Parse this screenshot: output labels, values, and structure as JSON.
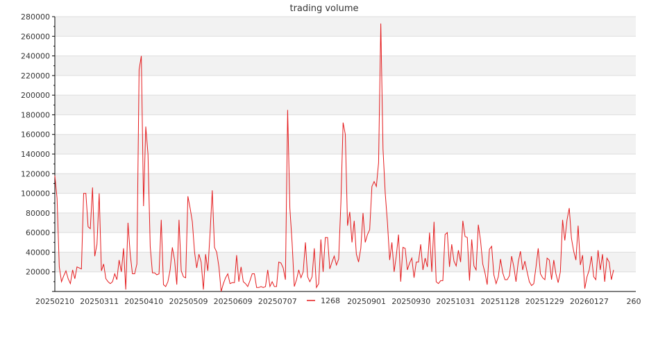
{
  "chart_data": {
    "type": "line",
    "title": "trading volume",
    "xlabel": "",
    "ylabel": "",
    "ylim": [
      0,
      280000
    ],
    "y_ticks": [
      20000,
      40000,
      60000,
      80000,
      100000,
      120000,
      140000,
      160000,
      180000,
      200000,
      220000,
      240000,
      260000,
      280000
    ],
    "x_tick_labels": [
      "20250210",
      "20250311",
      "20250410",
      "20250509",
      "20250609",
      "20250707",
      "20250806",
      "20250901",
      "20250930",
      "20251031",
      "20251128",
      "20251229",
      "20260127",
      "260"
    ],
    "grid": true,
    "legend_position": "bottom",
    "colors": {
      "series": "#e41a1c",
      "band": "#f2f2f2",
      "grid": "#dddddd",
      "axis": "#000000"
    },
    "series": [
      {
        "name": "1268",
        "values": [
          118000,
          95000,
          25000,
          10000,
          16000,
          21000,
          13000,
          8000,
          22000,
          13000,
          25000,
          24000,
          23000,
          100000,
          100000,
          66000,
          64000,
          106000,
          36000,
          48000,
          100000,
          21000,
          28000,
          13000,
          10000,
          8000,
          10000,
          18000,
          12000,
          32000,
          20000,
          44000,
          2000,
          70000,
          38000,
          18000,
          18000,
          28000,
          226000,
          240000,
          87000,
          168000,
          140000,
          46000,
          19000,
          19000,
          17000,
          18000,
          73000,
          7000,
          5000,
          10000,
          22000,
          45000,
          32000,
          7000,
          73000,
          21000,
          15000,
          14000,
          97000,
          85000,
          71000,
          40000,
          24000,
          38000,
          30000,
          2000,
          38000,
          21000,
          59000,
          103000,
          45000,
          40000,
          25000,
          0,
          8000,
          14000,
          18000,
          8000,
          9000,
          9000,
          37000,
          10000,
          25000,
          10000,
          8000,
          5000,
          11000,
          18000,
          18000,
          4000,
          4000,
          5000,
          4000,
          5000,
          22000,
          5000,
          10000,
          5000,
          5000,
          30000,
          29000,
          24000,
          12000,
          185000,
          85000,
          50000,
          5000,
          12000,
          22000,
          14000,
          20000,
          50000,
          15000,
          10000,
          15000,
          44000,
          4000,
          8000,
          53000,
          20000,
          55000,
          55000,
          23000,
          30000,
          36000,
          27000,
          33000,
          90000,
          172000,
          160000,
          67000,
          81000,
          50000,
          72000,
          38000,
          30000,
          44000,
          80000,
          50000,
          58000,
          63000,
          107000,
          112000,
          107000,
          131000,
          273000,
          145000,
          100000,
          70000,
          32000,
          50000,
          20000,
          36000,
          58000,
          10000,
          45000,
          44000,
          22000,
          29000,
          34000,
          14000,
          30000,
          30000,
          48000,
          22000,
          34000,
          25000,
          60000,
          20000,
          71000,
          10000,
          8000,
          11000,
          11000,
          58000,
          60000,
          25000,
          48000,
          31000,
          26000,
          42000,
          30000,
          72000,
          56000,
          55000,
          11000,
          53000,
          26000,
          22000,
          68000,
          52000,
          28000,
          19000,
          7000,
          43000,
          46000,
          17000,
          8000,
          15000,
          33000,
          19000,
          12000,
          12000,
          16000,
          36000,
          25000,
          10000,
          30000,
          41000,
          22000,
          31000,
          20000,
          10000,
          6000,
          8000,
          25000,
          44000,
          18000,
          14000,
          12000,
          34000,
          32000,
          12000,
          32000,
          18000,
          9000,
          20000,
          73000,
          52000,
          73000,
          85000,
          54000,
          41000,
          32000,
          67000,
          27000,
          37000,
          3000,
          15000,
          22000,
          36000,
          15000,
          12000,
          42000,
          22000,
          38000,
          10000,
          34000,
          30000,
          12000,
          22000
        ]
      }
    ]
  }
}
